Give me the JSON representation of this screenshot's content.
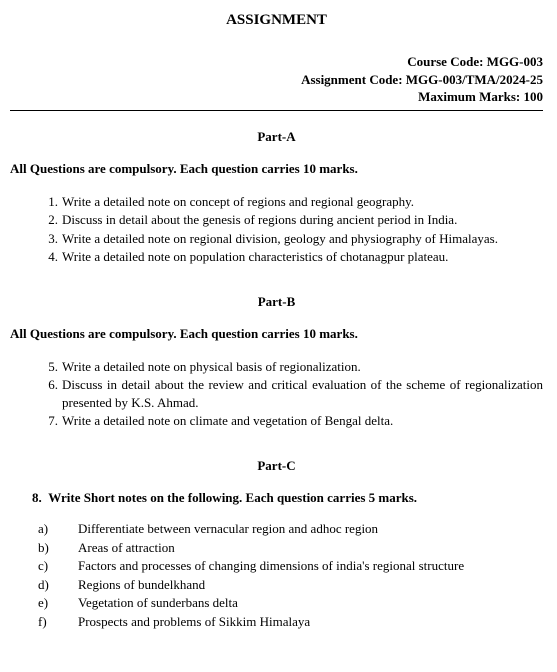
{
  "title": "ASSIGNMENT",
  "meta": {
    "course_code_label": "Course Code: MGG-003",
    "assignment_code_label": "Assignment Code: MGG-003/TMA/2024-25",
    "max_marks_label": "Maximum Marks: 100"
  },
  "partA": {
    "heading": "Part-A",
    "instruction": "All Questions are compulsory. Each question carries 10 marks.",
    "questions": [
      {
        "num": "1.",
        "text": "Write a detailed note on concept of regions and regional geography."
      },
      {
        "num": "2.",
        "text": "Discuss in detail about the genesis of regions during ancient period in India."
      },
      {
        "num": "3.",
        "text": "Write a detailed note on regional division, geology and physiography of Himalayas."
      },
      {
        "num": "4.",
        "text": "Write a detailed note on population characteristics of chotanagpur plateau."
      }
    ]
  },
  "partB": {
    "heading": "Part-B",
    "instruction": "All Questions are compulsory. Each question carries 10 marks.",
    "questions": [
      {
        "num": "5.",
        "text": "Write a detailed note on physical basis of regionalization."
      },
      {
        "num": "6.",
        "text": "Discuss in detail about the review and critical evaluation of the scheme of regionalization presented by K.S. Ahmad."
      },
      {
        "num": "7.",
        "text": "Write a detailed note on climate and vegetation of Bengal delta."
      }
    ]
  },
  "partC": {
    "heading": "Part-C",
    "q8": {
      "num": "8.",
      "text": "Write Short notes on the following. Each question carries 5 marks."
    },
    "subitems": [
      {
        "letter": "a)",
        "text": "Differentiate between vernacular region and adhoc region"
      },
      {
        "letter": "b)",
        "text": "Areas of attraction"
      },
      {
        "letter": "c)",
        "text": "Factors and processes of changing dimensions of india's regional structure"
      },
      {
        "letter": "d)",
        "text": "Regions of bundelkhand"
      },
      {
        "letter": "e)",
        "text": "Vegetation of sunderbans delta"
      },
      {
        "letter": "f)",
        "text": "Prospects and problems of Sikkim Himalaya"
      }
    ]
  }
}
